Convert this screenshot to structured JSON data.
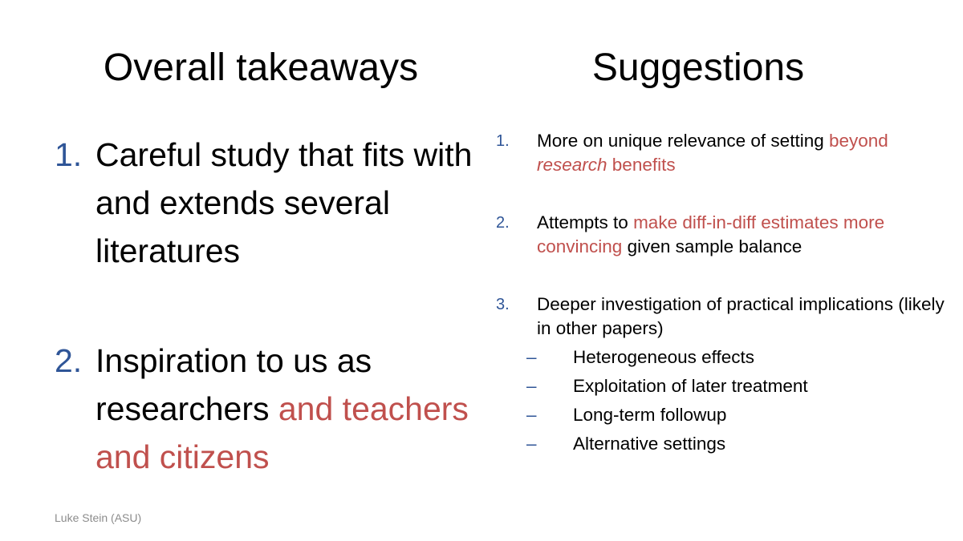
{
  "left": {
    "title": "Overall takeaways",
    "items": [
      {
        "number": "1.",
        "text": "Careful study that fits with and extends several literatures"
      },
      {
        "number": "2.",
        "text": "Inspiration to us as researchers ",
        "highlight": "and teachers and citizens"
      }
    ]
  },
  "right": {
    "title": "Suggestions",
    "items": [
      {
        "number": "1.",
        "text_a": "More on unique relevance of setting ",
        "highlight_a": "beyond ",
        "highlight_italic": "research",
        "highlight_b": " benefits"
      },
      {
        "number": "2.",
        "text_a": "Attempts to ",
        "highlight": "make diff-in-diff estimates more convincing",
        "text_b": " given sample balance"
      },
      {
        "number": "3.",
        "text": "Deeper investigation of practical implications (likely in other papers)",
        "subitems": [
          {
            "dash": "–",
            "text": "Heterogeneous effects"
          },
          {
            "dash": "–",
            "text": "Exploitation of later treatment"
          },
          {
            "dash": "–",
            "text": "Long-term followup"
          },
          {
            "dash": "–",
            "text": "Alternative settings"
          }
        ]
      }
    ]
  },
  "footer": "Luke Stein (ASU)",
  "colors": {
    "accent_blue": "#2f5597",
    "highlight_red": "#c0504d",
    "footer_gray": "#8c8c8c"
  }
}
